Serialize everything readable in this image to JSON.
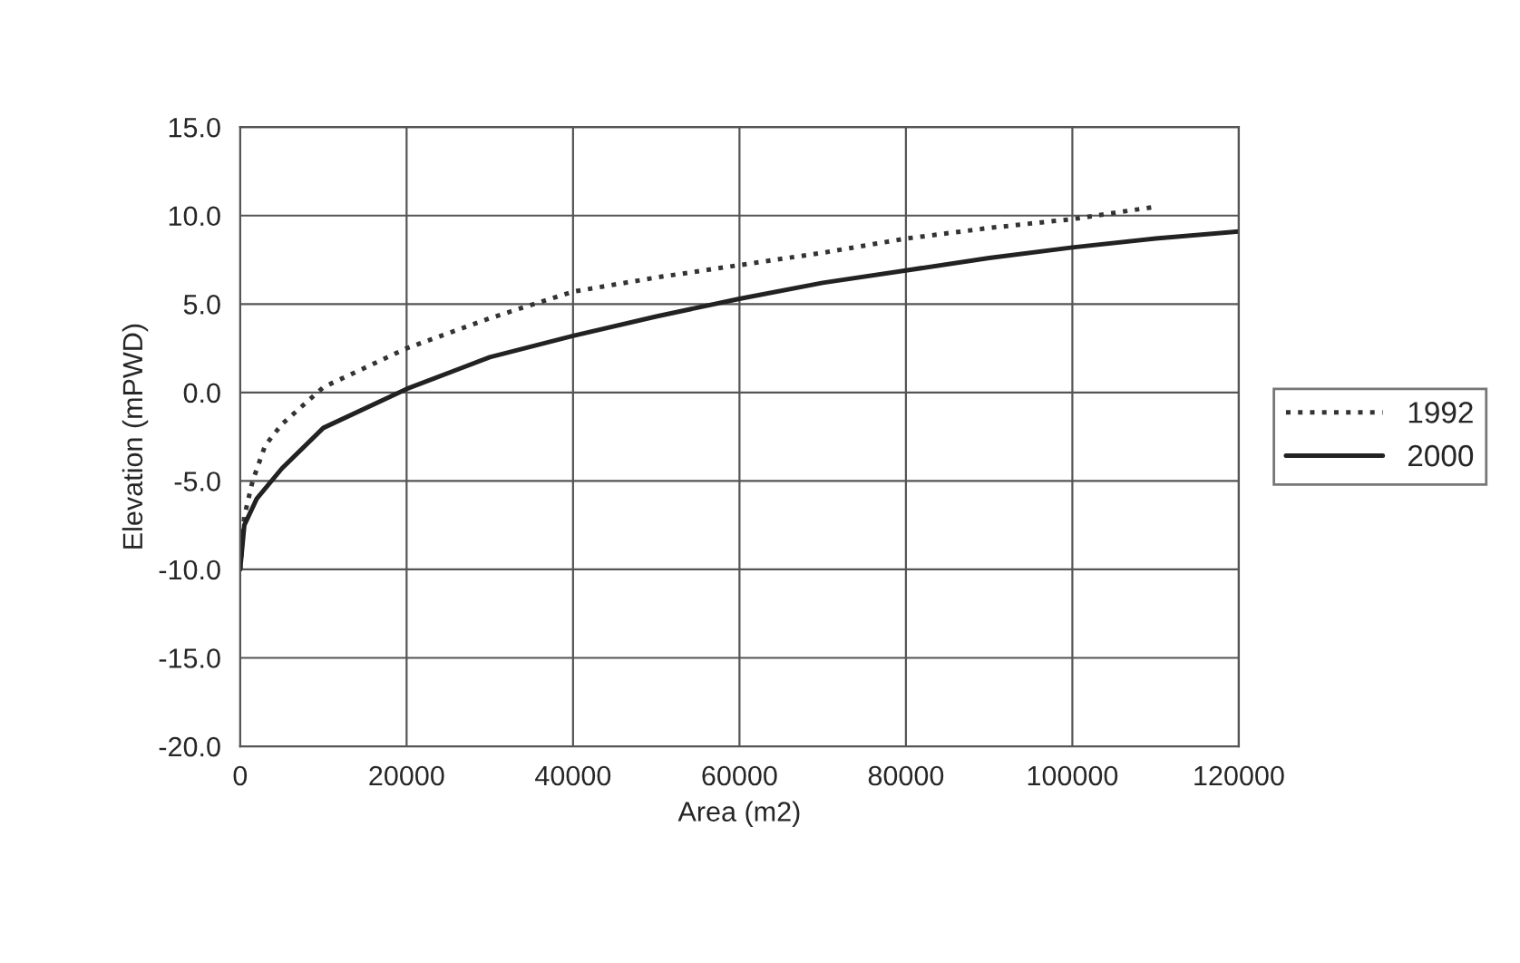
{
  "chart_data": {
    "type": "line",
    "xlabel": "Area (m2)",
    "ylabel": "Elevation (mPWD)",
    "xlim": [
      0,
      120000
    ],
    "xticks": [
      0,
      20000,
      40000,
      60000,
      80000,
      100000,
      120000
    ],
    "ylim": [
      -20,
      15
    ],
    "yticks": [
      {
        "value": -20,
        "label": "-20.0"
      },
      {
        "value": -15,
        "label": "-15.0"
      },
      {
        "value": -10,
        "label": "-10.0"
      },
      {
        "value": -5,
        "label": "-5.0"
      },
      {
        "value": 0,
        "label": "0.0"
      },
      {
        "value": 5,
        "label": "5.0"
      },
      {
        "value": 10,
        "label": "10.0"
      },
      {
        "value": 15,
        "label": "15.0"
      }
    ],
    "grid": true,
    "legend": "right",
    "series": [
      {
        "name": "1992",
        "color": "#333333",
        "line_style": "dotted",
        "x": [
          0,
          500,
          1500,
          3000,
          5000,
          10000,
          20000,
          30000,
          40000,
          50000,
          60000,
          70000,
          80000,
          90000,
          100000,
          110000
        ],
        "values": [
          -10,
          -7,
          -5,
          -3,
          -1.8,
          0.3,
          2.5,
          4.2,
          5.7,
          6.5,
          7.2,
          7.9,
          8.7,
          9.3,
          9.8,
          10.5
        ]
      },
      {
        "name": "2000",
        "color": "#222222",
        "line_style": "solid",
        "x": [
          0,
          500,
          2000,
          5000,
          10000,
          20000,
          30000,
          40000,
          50000,
          60000,
          70000,
          80000,
          90000,
          100000,
          110000,
          120000
        ],
        "values": [
          -10,
          -7.5,
          -6,
          -4.3,
          -2,
          0.2,
          2,
          3.2,
          4.3,
          5.3,
          6.2,
          6.9,
          7.6,
          8.2,
          8.7,
          9.1
        ]
      }
    ]
  }
}
